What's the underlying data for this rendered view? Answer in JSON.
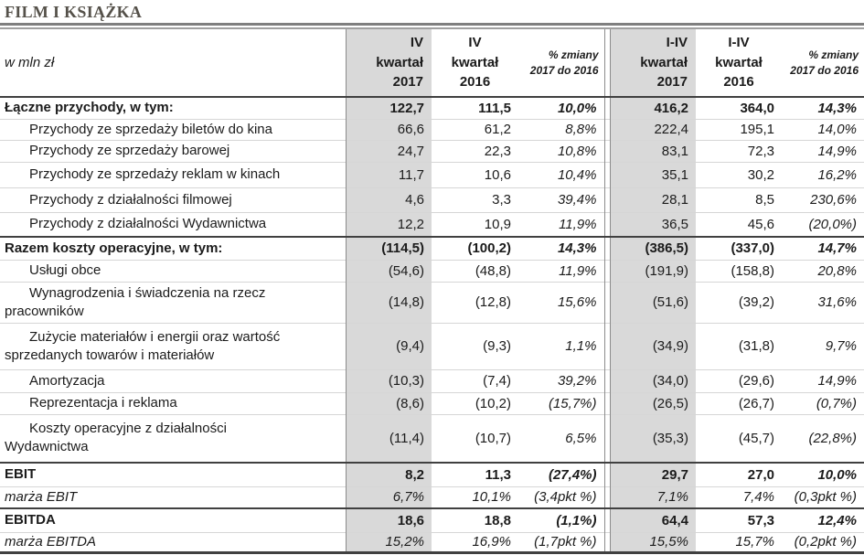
{
  "title": "FILM I KSIĄŻKA",
  "colors": {
    "highlight_bg": "#d9d9d9",
    "section_line": "#404040",
    "row_grid_line": "#d6d6d6",
    "column_line": "#8c8c8c",
    "title_color": "#55514a"
  },
  "table": {
    "unit_label": "w mln zł",
    "headers": [
      {
        "lines": [
          "IV",
          "kwartał",
          "2017"
        ],
        "type": "period",
        "highlight": true
      },
      {
        "lines": [
          "IV",
          "kwartał",
          "2016"
        ],
        "type": "period",
        "highlight": false
      },
      {
        "lines": [
          "% zmiany",
          "2017 do 2016"
        ],
        "type": "change",
        "highlight": false
      },
      {
        "lines": [
          "I-IV",
          "kwartał",
          "2017"
        ],
        "type": "period",
        "highlight": true
      },
      {
        "lines": [
          "I-IV",
          "kwartał",
          "2016"
        ],
        "type": "period",
        "highlight": false
      },
      {
        "lines": [
          "% zmiany",
          "2017 do 2016"
        ],
        "type": "change",
        "highlight": false
      }
    ],
    "rows": [
      {
        "label": "Łączne przychody, w tym:",
        "style": "total",
        "section": false,
        "indent": false,
        "values": [
          "122,7",
          "111,5",
          "10,0%",
          "416,2",
          "364,0",
          "14,3%"
        ]
      },
      {
        "label": "Przychody ze sprzedaży biletów do kina",
        "style": "item",
        "section": false,
        "indent": true,
        "values": [
          "66,6",
          "61,2",
          "8,8%",
          "222,4",
          "195,1",
          "14,0%"
        ]
      },
      {
        "label": "Przychody ze sprzedaży barowej",
        "style": "item",
        "section": false,
        "indent": true,
        "values": [
          "24,7",
          "22,3",
          "10,8%",
          "83,1",
          "72,3",
          "14,9%"
        ]
      },
      {
        "label": "Przychody ze sprzedaży reklam w kinach",
        "style": "item",
        "section": false,
        "indent": true,
        "values": [
          "11,7",
          "10,6",
          "10,4%",
          "35,1",
          "30,2",
          "16,2%"
        ]
      },
      {
        "label": "Przychody z działalności filmowej",
        "style": "item",
        "section": false,
        "indent": true,
        "values": [
          "4,6",
          "3,3",
          "39,4%",
          "28,1",
          "8,5",
          "230,6%"
        ]
      },
      {
        "label": "Przychody z działalności Wydawnictwa",
        "style": "item",
        "section": false,
        "indent": true,
        "values": [
          "12,2",
          "10,9",
          "11,9%",
          "36,5",
          "45,6",
          "(20,0%)"
        ]
      },
      {
        "label": "Razem koszty operacyjne, w tym:",
        "style": "total",
        "section": true,
        "indent": false,
        "values": [
          "(114,5)",
          "(100,2)",
          "14,3%",
          "(386,5)",
          "(337,0)",
          "14,7%"
        ]
      },
      {
        "label": "Usługi obce",
        "style": "item",
        "section": false,
        "indent": true,
        "values": [
          "(54,6)",
          "(48,8)",
          "11,9%",
          "(191,9)",
          "(158,8)",
          "20,8%"
        ]
      },
      {
        "label": [
          "Wynagrodzenia i świadczenia na rzecz",
          "pracowników"
        ],
        "style": "item",
        "section": false,
        "indent": true,
        "values": [
          "(14,8)",
          "(12,8)",
          "15,6%",
          "(51,6)",
          "(39,2)",
          "31,6%"
        ]
      },
      {
        "label": [
          "Zużycie materiałów i energii oraz wartość",
          "sprzedanych towarów i materiałów"
        ],
        "style": "item",
        "section": false,
        "indent": true,
        "values": [
          "(9,4)",
          "(9,3)",
          "1,1%",
          "(34,9)",
          "(31,8)",
          "9,7%"
        ]
      },
      {
        "label": "Amortyzacja",
        "style": "item",
        "section": false,
        "indent": true,
        "values": [
          "(10,3)",
          "(7,4)",
          "39,2%",
          "(34,0)",
          "(29,6)",
          "14,9%"
        ]
      },
      {
        "label": "Reprezentacja i reklama",
        "style": "item",
        "section": false,
        "indent": true,
        "values": [
          "(8,6)",
          "(10,2)",
          "(15,7%)",
          "(26,5)",
          "(26,7)",
          "(0,7%)"
        ]
      },
      {
        "label": [
          "Koszty operacyjne z działalności",
          "Wydawnictwa"
        ],
        "style": "item",
        "section": false,
        "indent": true,
        "values": [
          "(11,4)",
          "(10,7)",
          "6,5%",
          "(35,3)",
          "(45,7)",
          "(22,8%)"
        ]
      },
      {
        "label": "EBIT",
        "style": "total",
        "section": true,
        "indent": false,
        "values": [
          "8,2",
          "11,3",
          "(27,4%)",
          "29,7",
          "27,0",
          "10,0%"
        ]
      },
      {
        "label": "marża EBIT",
        "style": "margin",
        "section": false,
        "indent": false,
        "values": [
          "6,7%",
          "10,1%",
          "(3,4pkt %)",
          "7,1%",
          "7,4%",
          "(0,3pkt %)"
        ]
      },
      {
        "label": "EBITDA",
        "style": "total",
        "section": true,
        "indent": false,
        "values": [
          "18,6",
          "18,8",
          "(1,1%)",
          "64,4",
          "57,3",
          "12,4%"
        ]
      },
      {
        "label": "marża EBITDA",
        "style": "margin",
        "section": false,
        "indent": false,
        "values": [
          "15,2%",
          "16,9%",
          "(1,7pkt %)",
          "15,5%",
          "15,7%",
          "(0,2pkt %)"
        ]
      }
    ]
  }
}
